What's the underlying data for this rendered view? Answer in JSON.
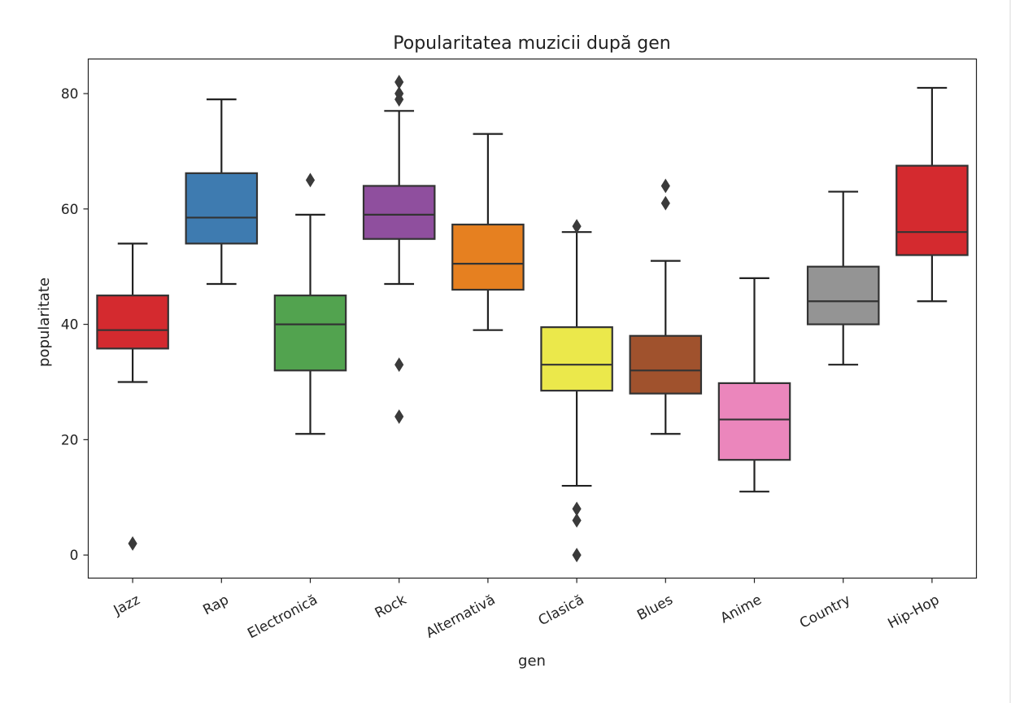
{
  "chart_data": {
    "type": "boxplot",
    "title": "Popularitatea muzicii după gen",
    "xlabel": "gen",
    "ylabel": "popularitate",
    "ylim": [
      -4,
      86
    ],
    "yticks": [
      0,
      20,
      40,
      60,
      80
    ],
    "grid": false,
    "legend": "none",
    "categories": [
      "Jazz",
      "Rap",
      "Electronică",
      "Rock",
      "Alternativă",
      "Clasică",
      "Blues",
      "Anime",
      "Country",
      "Hip-Hop"
    ],
    "colors": [
      "#d42a2f",
      "#3e7bb0",
      "#52a34f",
      "#8f4f9e",
      "#e68020",
      "#ebe84b",
      "#a0522d",
      "#eb86bc",
      "#949494",
      "#d42a2f"
    ],
    "boxes": [
      {
        "whisker_low": 30,
        "q1": 35.8,
        "median": 39,
        "q3": 45,
        "whisker_high": 54,
        "outliers": [
          2
        ]
      },
      {
        "whisker_low": 47,
        "q1": 54,
        "median": 58.5,
        "q3": 66.2,
        "whisker_high": 79,
        "outliers": []
      },
      {
        "whisker_low": 21,
        "q1": 32,
        "median": 40,
        "q3": 45,
        "whisker_high": 59,
        "outliers": [
          65
        ]
      },
      {
        "whisker_low": 47,
        "q1": 54.8,
        "median": 59,
        "q3": 64,
        "whisker_high": 77,
        "outliers": [
          82,
          80,
          79,
          33,
          24
        ]
      },
      {
        "whisker_low": 39,
        "q1": 46,
        "median": 50.5,
        "q3": 57.3,
        "whisker_high": 73,
        "outliers": []
      },
      {
        "whisker_low": 12,
        "q1": 28.5,
        "median": 33,
        "q3": 39.5,
        "whisker_high": 56,
        "outliers": [
          57,
          8,
          6,
          0
        ]
      },
      {
        "whisker_low": 21,
        "q1": 28,
        "median": 32,
        "q3": 38,
        "whisker_high": 51,
        "outliers": [
          64,
          61
        ]
      },
      {
        "whisker_low": 11,
        "q1": 16.5,
        "median": 23.5,
        "q3": 29.8,
        "whisker_high": 48,
        "outliers": []
      },
      {
        "whisker_low": 33,
        "q1": 40,
        "median": 44,
        "q3": 50,
        "whisker_high": 63,
        "outliers": []
      },
      {
        "whisker_low": 44,
        "q1": 52,
        "median": 56,
        "q3": 67.5,
        "whisker_high": 81,
        "outliers": []
      }
    ]
  }
}
